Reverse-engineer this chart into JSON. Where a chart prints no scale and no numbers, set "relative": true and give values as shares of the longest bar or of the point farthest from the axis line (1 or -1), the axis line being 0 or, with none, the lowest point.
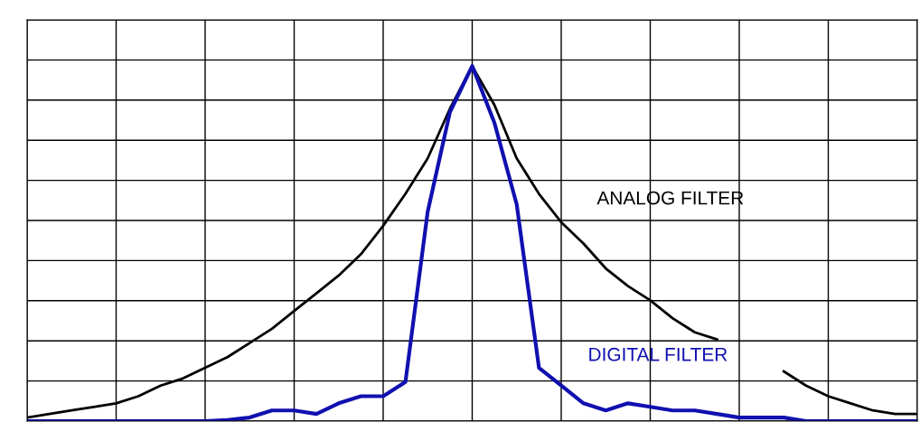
{
  "chart_data": {
    "type": "line",
    "relative": true,
    "grid": true,
    "legend": false,
    "tick_labels": false,
    "categories": [
      null,
      null,
      null,
      null,
      null,
      null,
      null,
      null,
      null,
      null,
      null,
      null,
      null,
      null,
      null,
      null,
      null,
      null,
      null,
      null,
      null,
      null,
      null,
      null,
      null,
      null,
      null,
      null,
      null,
      null,
      null,
      null,
      null,
      null,
      null,
      null,
      null,
      null,
      null,
      null,
      null
    ],
    "series": [
      {
        "name": "ANALOG FILTER",
        "color": "#000000",
        "values": [
          0.01,
          0.02,
          0.03,
          0.04,
          0.05,
          0.07,
          0.1,
          0.12,
          0.15,
          0.18,
          0.22,
          0.26,
          0.31,
          0.36,
          0.41,
          0.47,
          0.55,
          0.64,
          0.74,
          0.88,
          1,
          0.89,
          0.74,
          0.64,
          0.56,
          0.5,
          0.43,
          0.38,
          0.34,
          0.29,
          0.25,
          0.23,
          null,
          null,
          0.14,
          0.1,
          0.07,
          0.05,
          0.03,
          0.02,
          0.02
        ]
      },
      {
        "name": "DIGITAL FILTER",
        "color": "#1010b0",
        "values": [
          0,
          0,
          0,
          0,
          0,
          0,
          0,
          0,
          0,
          0.003,
          0.01,
          0.03,
          0.03,
          0.02,
          0.05,
          0.07,
          0.07,
          0.11,
          0.59,
          0.87,
          1,
          0.84,
          0.61,
          0.15,
          0.1,
          0.05,
          0.03,
          0.05,
          0.04,
          0.03,
          0.03,
          0.02,
          0.01,
          0.01,
          0.01,
          0,
          0,
          0,
          0,
          0,
          0
        ]
      }
    ]
  }
}
